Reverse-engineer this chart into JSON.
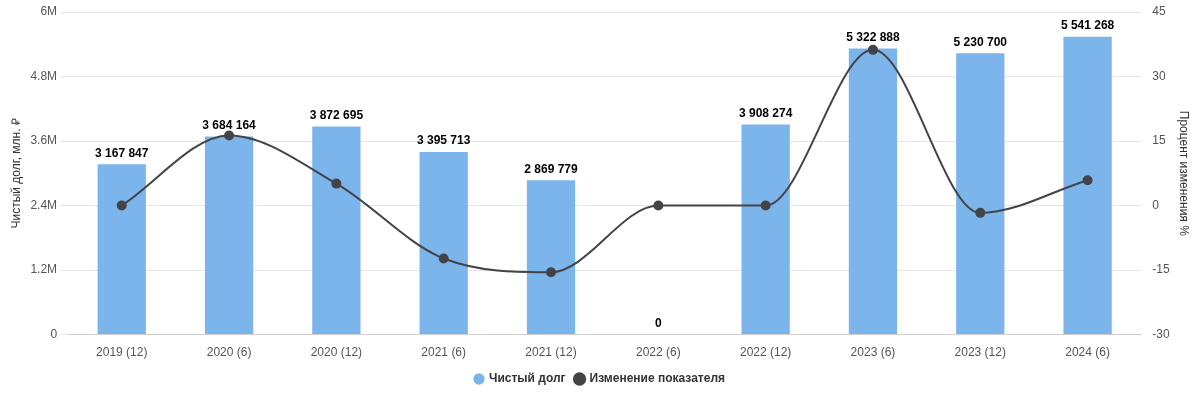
{
  "chart_data": {
    "type": "bar",
    "ylabel": "Чистый долг, млн. ₽",
    "y2label": "Процент изменения %",
    "categories": [
      "2019 (12)",
      "2020 (6)",
      "2020 (12)",
      "2021 (6)",
      "2021 (12)",
      "2022 (6)",
      "2022 (12)",
      "2023 (6)",
      "2023 (12)",
      "2024 (6)"
    ],
    "series": [
      {
        "name": "Чистый долг",
        "color": "#7cb5ec",
        "values": [
          3167847,
          3684164,
          3872695,
          3395713,
          2869779,
          0,
          3908274,
          5322888,
          5230700,
          5541268
        ],
        "value_labels": [
          "3 167 847",
          "3 684 164",
          "3 872 695",
          "3 395 713",
          "2 869 779",
          "0",
          "3 908 274",
          "5 322 888",
          "5 230 700",
          "5 541 268"
        ]
      },
      {
        "name": "Изменение показателя",
        "type": "line",
        "axis": "y2",
        "color": "#434348",
        "values": [
          0,
          16.3,
          5.1,
          -12.3,
          -15.5,
          0,
          0,
          36.2,
          -1.7,
          5.9
        ]
      }
    ],
    "ylim": [
      0,
      6000000
    ],
    "yticks": [
      0,
      {
        "value": 1200000,
        "label": "1.2M"
      },
      {
        "value": 2400000,
        "label": "2.4M"
      },
      {
        "value": 3600000,
        "label": "3.6M"
      },
      {
        "value": 4800000,
        "label": "4.8M"
      },
      {
        "value": 6000000,
        "label": "6M"
      }
    ],
    "y2lim": [
      -30,
      45
    ],
    "y2ticks": [
      -30,
      -15,
      0,
      15,
      30,
      45
    ],
    "grid": "y",
    "legend": "bottom",
    "marker": "circle",
    "line_style": "solid"
  }
}
